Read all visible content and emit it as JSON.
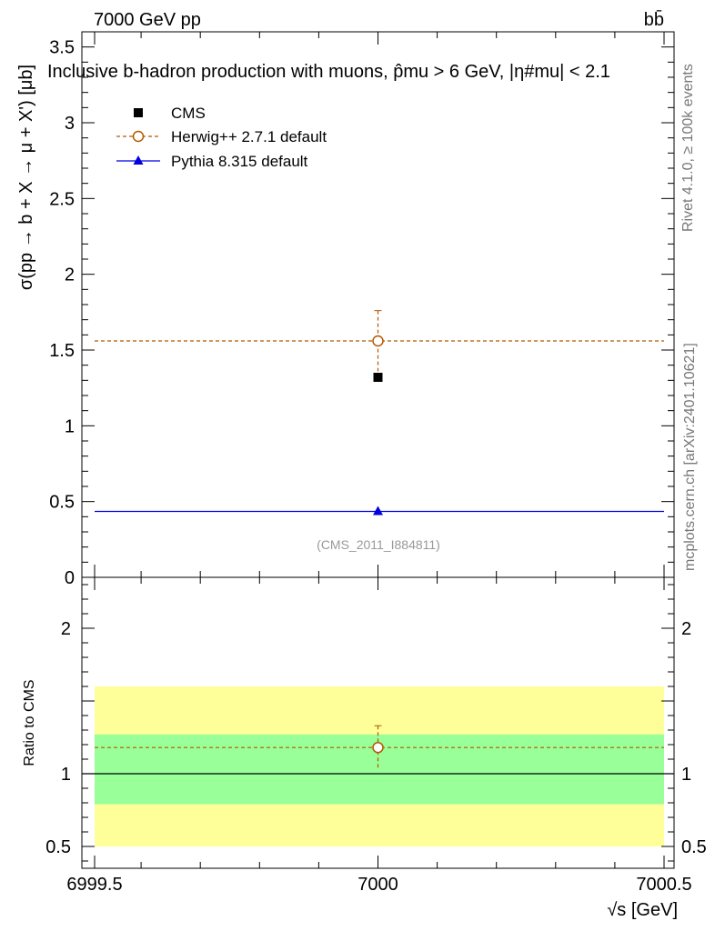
{
  "header": {
    "left": "7000 GeV pp",
    "right": "bb̄",
    "title": "Inclusive b-hadron production with muons, p̂mu > 6 GeV, |η#mu| < 2.1"
  },
  "side_labels": {
    "rivet": "Rivet 4.1.0, ≥ 100k events",
    "mcplots": "mcplots.cern.ch [arXiv:2401.10621]"
  },
  "watermark": "(CMS_2011_I884811)",
  "chart_data": [
    {
      "type": "scatter",
      "ylabel": "σ(pp → b + X → μ + X') [μb]",
      "xlim": [
        6999.5,
        7000.5
      ],
      "ylim": [
        0,
        3.6
      ],
      "yticks": [
        {
          "v": 0,
          "label": "0"
        },
        {
          "v": 0.5,
          "label": "0.5"
        },
        {
          "v": 1,
          "label": "1"
        },
        {
          "v": 1.5,
          "label": "1.5"
        },
        {
          "v": 2,
          "label": "2"
        },
        {
          "v": 2.5,
          "label": "2.5"
        },
        {
          "v": 3,
          "label": "3"
        },
        {
          "v": 3.5,
          "label": "3.5"
        }
      ],
      "legend": [
        {
          "name": "CMS",
          "key": "cms"
        },
        {
          "name": "Herwig++ 2.7.1 default",
          "key": "herwig"
        },
        {
          "name": "Pythia 8.315 default",
          "key": "pythia"
        }
      ],
      "series": {
        "cms": {
          "name": "CMS",
          "x": 7000,
          "y": 1.32,
          "color": "#000000"
        },
        "herwig": {
          "name": "Herwig++ 2.7.1 default",
          "x": 7000,
          "y": 1.56,
          "yerr_up": 0.2,
          "yerr_down": 0.2,
          "color": "#b35900"
        },
        "pythia": {
          "name": "Pythia 8.315 default",
          "x": 7000,
          "y": 0.435,
          "yerr_up": 0.02,
          "yerr_down": 0.02,
          "color": "#0000e0"
        }
      }
    },
    {
      "type": "ratio",
      "ylabel": "Ratio to CMS",
      "xlabel": "√s [GeV]",
      "xlim": [
        6999.5,
        7000.5
      ],
      "ylim": [
        0.35,
        2.35
      ],
      "xticks": [
        {
          "v": 6999.5,
          "label": "6999.5"
        },
        {
          "v": 7000,
          "label": "7000"
        },
        {
          "v": 7000.5,
          "label": "7000.5"
        }
      ],
      "yticks": [
        {
          "v": 0.5,
          "label": "0.5"
        },
        {
          "v": 1,
          "label": "1"
        },
        {
          "v": 2,
          "label": "2"
        }
      ],
      "bands": {
        "yellow": [
          0.5,
          1.6
        ],
        "green": [
          0.79,
          1.27
        ]
      },
      "herwig_ratio": {
        "y": 1.18,
        "yerr_up": 0.15,
        "yerr_down": 0.15
      },
      "colors": {
        "yellow": "#ffff99",
        "green": "#99ff99"
      }
    }
  ]
}
